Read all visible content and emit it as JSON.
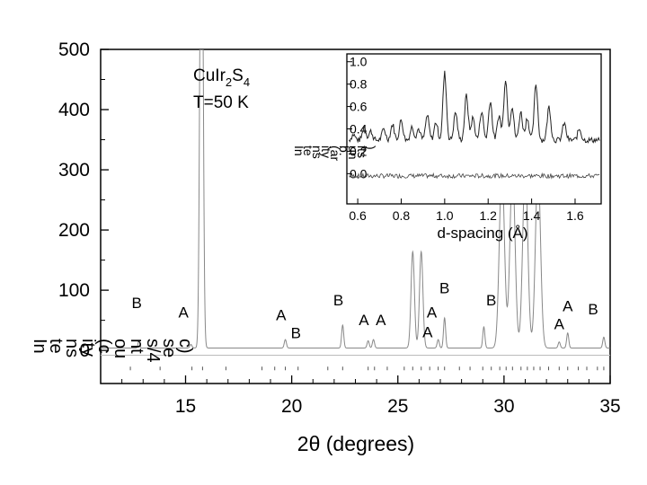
{
  "chart_data": [
    {
      "type": "line",
      "name": "main",
      "title": "",
      "sample": {
        "formula_base": "CuIr",
        "sub1": "2",
        "mid": "S",
        "sub2": "4",
        "temperature": "T=50 K"
      },
      "xlabel": "2θ (degrees)",
      "ylabel": "Intensity (counts/4 sec)",
      "ylabel_rendered": [
        {
          "text": "In",
          "pos": 1
        },
        {
          "text": "te",
          "pos": 2
        },
        {
          "text": "ns",
          "pos": 3
        },
        {
          "text": "ity",
          "pos": 4
        },
        {
          "text": "(c",
          "pos": 5
        },
        {
          "text": "ou",
          "pos": 6
        },
        {
          "text": "nt",
          "pos": 7
        },
        {
          "text": "s/4",
          "pos": 8
        },
        {
          "text": "se",
          "pos": 9
        },
        {
          "text": "c)",
          "pos": 10
        }
      ],
      "xlim": [
        11.0,
        35.0
      ],
      "ylim": [
        -55,
        500
      ],
      "xticks": [
        15,
        20,
        25,
        30,
        35
      ],
      "yticks": [
        0,
        100,
        200,
        300,
        400,
        500
      ],
      "peaks": [
        {
          "x": 12.8,
          "h": 12,
          "w": 0.04
        },
        {
          "x": 15.25,
          "h": 6,
          "w": 0.05
        },
        {
          "x": 15.75,
          "h": 1000,
          "w": 0.07
        },
        {
          "x": 19.7,
          "h": 14,
          "w": 0.05
        },
        {
          "x": 22.4,
          "h": 38,
          "w": 0.05
        },
        {
          "x": 23.6,
          "h": 12,
          "w": 0.05
        },
        {
          "x": 23.85,
          "h": 14,
          "w": 0.05
        },
        {
          "x": 25.7,
          "h": 160,
          "w": 0.08
        },
        {
          "x": 26.1,
          "h": 160,
          "w": 0.08
        },
        {
          "x": 26.9,
          "h": 14,
          "w": 0.05
        },
        {
          "x": 27.2,
          "h": 50,
          "w": 0.05
        },
        {
          "x": 29.05,
          "h": 35,
          "w": 0.05
        },
        {
          "x": 29.9,
          "h": 300,
          "w": 0.12
        },
        {
          "x": 30.4,
          "h": 300,
          "w": 0.12
        },
        {
          "x": 31.0,
          "h": 300,
          "w": 0.12
        },
        {
          "x": 31.6,
          "h": 300,
          "w": 0.12
        },
        {
          "x": 32.6,
          "h": 10,
          "w": 0.05
        },
        {
          "x": 33.0,
          "h": 25,
          "w": 0.05
        },
        {
          "x": 34.7,
          "h": 18,
          "w": 0.05
        }
      ],
      "peak_labels": [
        {
          "text": "B",
          "x": 12.7,
          "y": 70
        },
        {
          "text": "A",
          "x": 14.9,
          "y": 55
        },
        {
          "text": "A",
          "x": 19.5,
          "y": 50
        },
        {
          "text": "B",
          "x": 20.2,
          "y": 20
        },
        {
          "text": "B",
          "x": 22.2,
          "y": 75
        },
        {
          "text": "A",
          "x": 23.4,
          "y": 42
        },
        {
          "text": "A",
          "x": 24.2,
          "y": 42
        },
        {
          "text": "A",
          "x": 26.6,
          "y": 55
        },
        {
          "text": "A",
          "x": 26.4,
          "y": 22
        },
        {
          "text": "B",
          "x": 27.2,
          "y": 95
        },
        {
          "text": "B",
          "x": 29.4,
          "y": 75
        },
        {
          "text": "A",
          "x": 33.0,
          "y": 65
        },
        {
          "text": "A",
          "x": 32.6,
          "y": 35
        },
        {
          "text": "B",
          "x": 34.2,
          "y": 60
        }
      ],
      "reflection_ticks_x": [
        12.4,
        13.8,
        15.3,
        15.8,
        16.9,
        18.6,
        19.2,
        19.7,
        20.3,
        21.7,
        22.4,
        23.6,
        23.9,
        24.5,
        25.3,
        25.7,
        26.1,
        26.5,
        26.9,
        27.2,
        27.9,
        28.4,
        29.0,
        29.4,
        29.8,
        30.1,
        30.4,
        30.8,
        31.1,
        31.4,
        31.7,
        32.1,
        32.6,
        33.0,
        33.5,
        33.9,
        34.4,
        34.7
      ]
    },
    {
      "type": "line",
      "name": "inset",
      "xlabel": "d-spacing (Å)",
      "ylabel": "Intensity (arb. units)",
      "ylabel_rendered": [
        {
          "text": "In",
          "pos": 1
        },
        {
          "text": "te",
          "pos": 2
        },
        {
          "text": "ns",
          "pos": 3
        },
        {
          "text": "ity",
          "pos": 4
        },
        {
          "text": "(ar",
          "pos": 5
        },
        {
          "text": "b.",
          "pos": 6
        },
        {
          "text": "un",
          "pos": 7
        },
        {
          "text": "its",
          "pos": 8
        },
        {
          "text": ")",
          "pos": 9
        }
      ],
      "xlim": [
        0.55,
        1.72
      ],
      "ylim": [
        -0.27,
        1.07
      ],
      "xticks": [
        0.6,
        0.8,
        1.0,
        1.2,
        1.4,
        1.6
      ],
      "xtick_labels": [
        "0.6",
        "0.8",
        "1.0",
        "1.2",
        "1.4",
        "1.6"
      ],
      "yticks": [
        0.0,
        0.2,
        0.4,
        0.6,
        0.8,
        1.0
      ],
      "ytick_labels": [
        "0.0",
        "0.2",
        "0.4",
        "0.6",
        "0.8",
        "1.0"
      ],
      "baseline": 0.3,
      "difference_offset": -0.02,
      "peaks": [
        {
          "x": 0.58,
          "h": 0.05
        },
        {
          "x": 0.63,
          "h": 0.12
        },
        {
          "x": 0.66,
          "h": 0.08
        },
        {
          "x": 0.72,
          "h": 0.1
        },
        {
          "x": 0.76,
          "h": 0.14
        },
        {
          "x": 0.8,
          "h": 0.18
        },
        {
          "x": 0.85,
          "h": 0.12
        },
        {
          "x": 0.88,
          "h": 0.1
        },
        {
          "x": 0.92,
          "h": 0.22
        },
        {
          "x": 0.96,
          "h": 0.16
        },
        {
          "x": 1.0,
          "h": 0.6
        },
        {
          "x": 1.05,
          "h": 0.25
        },
        {
          "x": 1.1,
          "h": 0.4
        },
        {
          "x": 1.13,
          "h": 0.2
        },
        {
          "x": 1.17,
          "h": 0.26
        },
        {
          "x": 1.21,
          "h": 0.35
        },
        {
          "x": 1.25,
          "h": 0.22
        },
        {
          "x": 1.28,
          "h": 0.55
        },
        {
          "x": 1.31,
          "h": 0.3
        },
        {
          "x": 1.35,
          "h": 0.25
        },
        {
          "x": 1.38,
          "h": 0.2
        },
        {
          "x": 1.42,
          "h": 0.5
        },
        {
          "x": 1.48,
          "h": 0.3
        },
        {
          "x": 1.55,
          "h": 0.15
        },
        {
          "x": 1.62,
          "h": 0.1
        }
      ]
    }
  ]
}
